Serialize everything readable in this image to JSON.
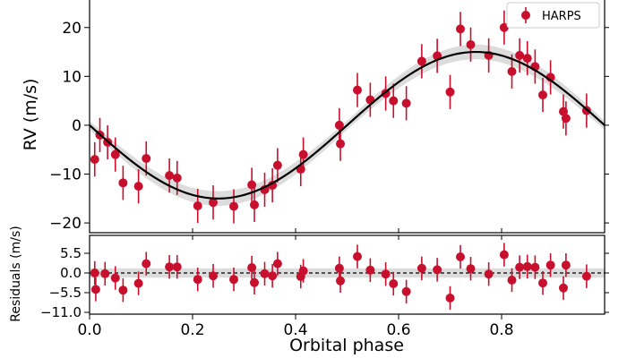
{
  "chart_data": [
    {
      "type": "scatter",
      "panel": "rv",
      "xlabel": "Orbital phase",
      "ylabel": "RV (m/s)",
      "xlim": [
        0.0,
        1.0
      ],
      "ylim": [
        -22,
        26
      ],
      "yticks": [
        -20,
        -10,
        0,
        10,
        20
      ],
      "ytick_labels": [
        "−20",
        "−10",
        "0",
        "10",
        "20"
      ],
      "grid": false,
      "legend": {
        "placement": "top-right",
        "entries": [
          "HARPS"
        ]
      },
      "model": {
        "amplitude": 15.0,
        "phase_of_max": 0.75,
        "offset": 0.0
      },
      "series": [
        {
          "name": "HARPS",
          "color": "#c8102e",
          "x": [
            0.01,
            0.02,
            0.035,
            0.05,
            0.065,
            0.095,
            0.11,
            0.155,
            0.17,
            0.21,
            0.24,
            0.28,
            0.315,
            0.32,
            0.34,
            0.355,
            0.365,
            0.41,
            0.415,
            0.485,
            0.487,
            0.52,
            0.545,
            0.575,
            0.59,
            0.615,
            0.645,
            0.675,
            0.7,
            0.72,
            0.74,
            0.775,
            0.805,
            0.82,
            0.835,
            0.85,
            0.865,
            0.88,
            0.895,
            0.92,
            0.925,
            0.965
          ],
          "y": [
            -7.0,
            -2.0,
            -3.5,
            -6.0,
            -11.8,
            -12.5,
            -6.8,
            -10.3,
            -10.8,
            -16.5,
            -15.8,
            -16.6,
            -12.2,
            -16.3,
            -13.2,
            -12.3,
            -8.2,
            -9.0,
            -6.0,
            0.0,
            -3.8,
            7.2,
            5.2,
            6.5,
            5.0,
            4.5,
            13.1,
            14.2,
            6.8,
            19.7,
            16.5,
            14.3,
            20.0,
            11.0,
            14.3,
            13.7,
            12.0,
            6.2,
            9.8,
            2.8,
            1.4,
            3.0
          ],
          "yerr": [
            3.5,
            3.5,
            3.5,
            3.5,
            3.5,
            3.5,
            3.5,
            3.5,
            3.5,
            3.5,
            3.5,
            3.5,
            3.5,
            3.5,
            3.5,
            3.5,
            3.5,
            3.5,
            3.5,
            3.5,
            3.5,
            3.5,
            3.5,
            3.5,
            3.5,
            3.5,
            3.5,
            3.5,
            3.5,
            3.5,
            3.5,
            3.5,
            3.5,
            3.5,
            3.5,
            3.5,
            3.5,
            3.5,
            3.5,
            3.5,
            3.5,
            3.5
          ]
        }
      ]
    },
    {
      "type": "scatter",
      "panel": "residuals",
      "xlabel": "Orbital phase",
      "ylabel": "Residuals (m/s)",
      "xlim": [
        0.0,
        1.0
      ],
      "ylim": [
        -11.5,
        10.5
      ],
      "xticks": [
        0.0,
        0.2,
        0.4,
        0.6,
        0.8
      ],
      "xtick_labels": [
        "0.0",
        "0.2",
        "0.4",
        "0.6",
        "0.8"
      ],
      "yticks": [
        5.5,
        0.0,
        -5.5,
        -11.0
      ],
      "ytick_labels": [
        "5.5",
        "0.0",
        "−5.5",
        "−11.0"
      ],
      "zero_line": true,
      "series": [
        {
          "name": "HARPS",
          "color": "#c8102e",
          "x": [
            0.01,
            0.012,
            0.03,
            0.05,
            0.065,
            0.095,
            0.11,
            0.155,
            0.17,
            0.21,
            0.24,
            0.28,
            0.315,
            0.32,
            0.34,
            0.355,
            0.365,
            0.41,
            0.415,
            0.485,
            0.487,
            0.52,
            0.545,
            0.575,
            0.59,
            0.615,
            0.645,
            0.675,
            0.7,
            0.72,
            0.74,
            0.775,
            0.805,
            0.82,
            0.835,
            0.85,
            0.865,
            0.88,
            0.895,
            0.92,
            0.925,
            0.965
          ],
          "y": [
            0.0,
            -4.6,
            -0.2,
            -1.4,
            -4.8,
            -2.9,
            2.6,
            1.7,
            1.7,
            -1.8,
            -0.8,
            -1.8,
            1.5,
            -2.7,
            -0.2,
            -0.8,
            2.6,
            -1.0,
            0.6,
            1.3,
            -2.2,
            4.6,
            0.8,
            -0.3,
            -3.0,
            -5.2,
            1.3,
            0.9,
            -7.0,
            4.5,
            1.2,
            -0.3,
            5.1,
            -2.0,
            1.6,
            1.8,
            1.6,
            -2.8,
            2.2,
            -4.2,
            2.2,
            -0.9
          ],
          "yerr": [
            3.3,
            3.3,
            3.3,
            3.3,
            3.3,
            3.3,
            3.3,
            3.3,
            3.3,
            3.3,
            3.3,
            3.3,
            3.3,
            3.3,
            3.3,
            3.3,
            3.3,
            3.3,
            3.3,
            3.3,
            3.3,
            3.3,
            3.3,
            3.3,
            3.3,
            3.3,
            3.3,
            3.3,
            3.3,
            3.3,
            3.3,
            3.3,
            3.3,
            3.3,
            3.3,
            3.3,
            3.3,
            3.3,
            3.3,
            3.3,
            3.3,
            3.3
          ]
        }
      ]
    }
  ]
}
